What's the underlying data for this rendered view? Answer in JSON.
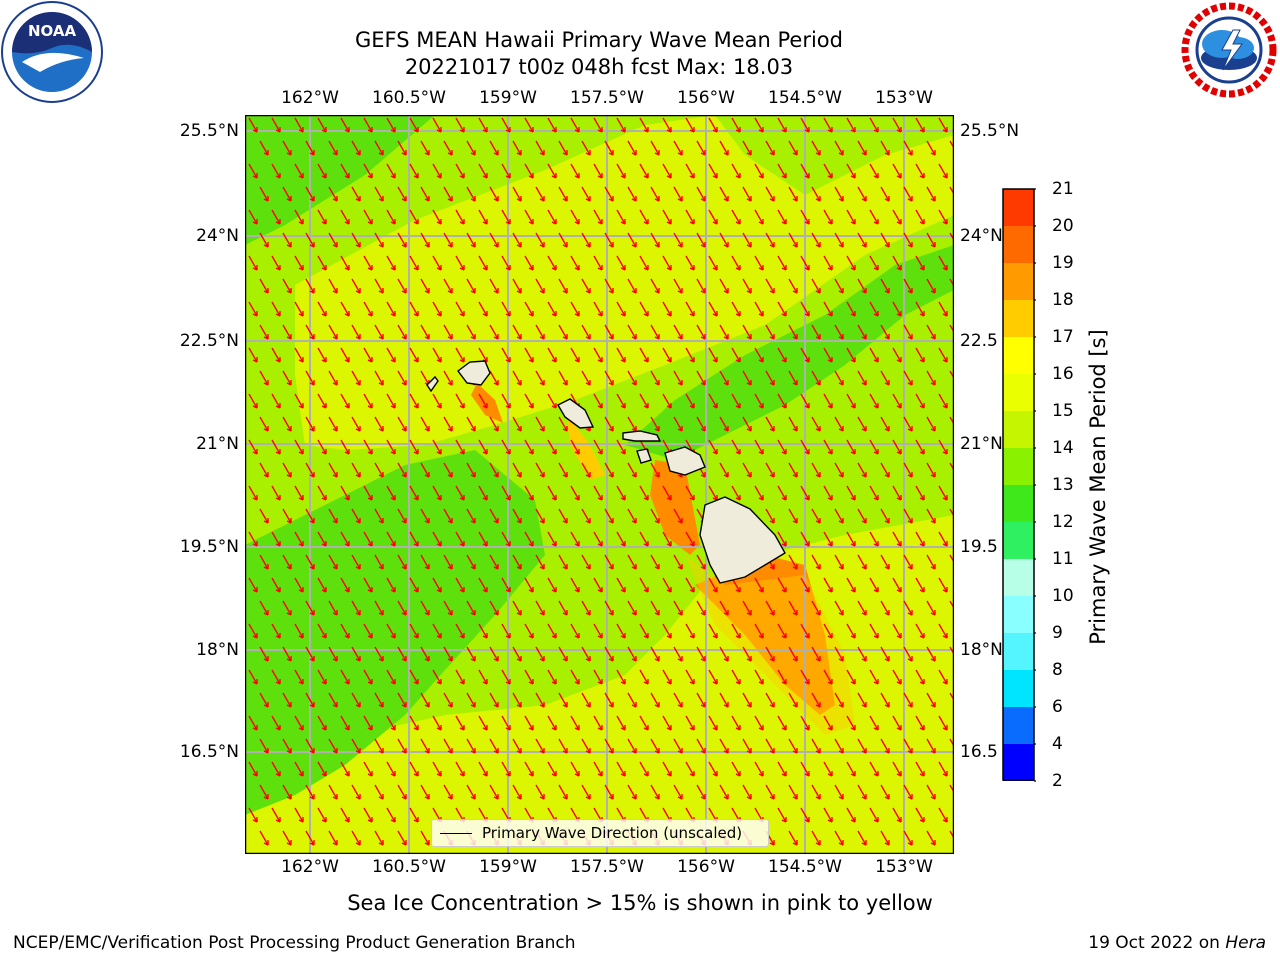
{
  "title": {
    "line1": "GEFS MEAN Hawaii Primary Wave Mean Period",
    "line2": "20221017 t00z 048h fcst   Max: 18.03"
  },
  "axes": {
    "lon_labels": [
      "162°W",
      "160.5°W",
      "159°W",
      "157.5°W",
      "156°W",
      "154.5°W",
      "153°W"
    ],
    "lat_labels": [
      "25.5°N",
      "24°N",
      "22.5°N",
      "21°N",
      "19.5°N",
      "18°N",
      "16.5°N"
    ],
    "lat_labels_right": [
      "25.5°N",
      "24°N",
      "22.5",
      "21°N",
      "19.5",
      "18°N",
      "16.5"
    ]
  },
  "colorbar": {
    "label": "Primary Wave Mean Period [s]",
    "ticks": [
      "2",
      "4",
      "6",
      "8",
      "9",
      "10",
      "11",
      "12",
      "13",
      "14",
      "15",
      "16",
      "17",
      "18",
      "19",
      "20",
      "21"
    ],
    "colors": [
      "#0000ff",
      "#0a6cff",
      "#00e5ff",
      "#55f5ff",
      "#8affff",
      "#b7ffe6",
      "#2ef060",
      "#3ee81a",
      "#8af200",
      "#c6f500",
      "#eaff00",
      "#ffff00",
      "#ffcc00",
      "#ff9a00",
      "#ff6a00",
      "#ff3a00",
      "#ff0000"
    ]
  },
  "legend": {
    "label": "Primary Wave Direction (unscaled)"
  },
  "colors": {
    "green": "#5ee00c",
    "lime": "#a8f000",
    "yellow_green": "#dcf500",
    "orange": "#ff8c00",
    "land": "#efecdc",
    "arrow": "#ff0000",
    "grid": "#b0b0b0"
  },
  "note": "Sea Ice Concentration > 15% is shown in pink to yellow",
  "footer": {
    "left": "NCEP/EMC/Verification Post Processing Product Generation Branch",
    "right_prefix": "19 Oct 2022 on ",
    "right_italic": "Hera"
  },
  "logos": {
    "left_name": "noaa-logo",
    "left_text": "NOAA",
    "right_name": "nws-logo",
    "right_text": "NATIONAL WEATHER SERVICE"
  }
}
